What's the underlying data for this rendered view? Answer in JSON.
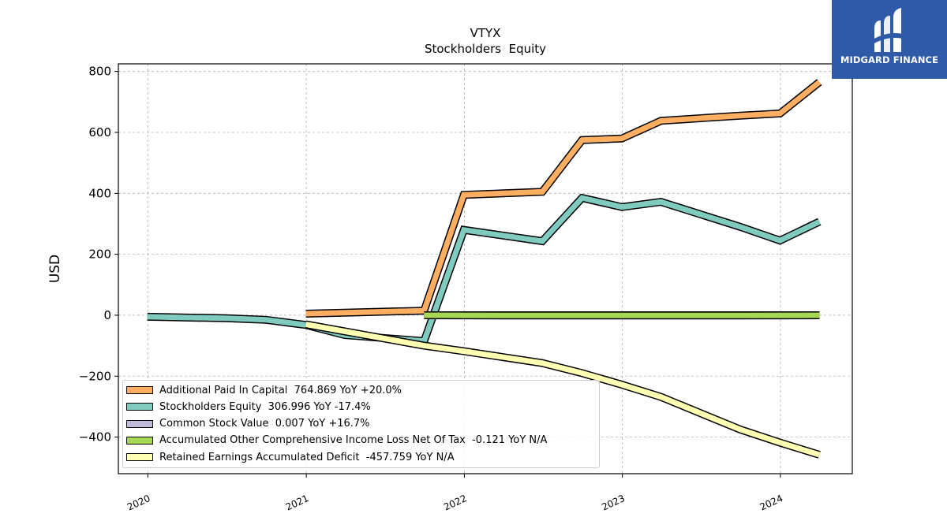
{
  "chart_data": {
    "type": "line",
    "title": "VTYX",
    "subtitle": "Stockholders  Equity",
    "ylabel": "USD",
    "xlabel": "",
    "x_ticks": [
      "2020",
      "2021",
      "2022",
      "2023",
      "2024"
    ],
    "y_ticks": [
      "−400",
      "−200",
      "0",
      "200",
      "400",
      "600",
      "800"
    ],
    "ylim": [
      -520,
      825
    ],
    "xlim": [
      "2019-10-25",
      "2024-06-15"
    ],
    "grid": true,
    "legend_position": "lower-left",
    "series": [
      {
        "name": "Additional Paid In Capital  764.869 YoY +20.0%",
        "color": "#fdae61",
        "points": [
          [
            "2020-12-31",
            5
          ],
          [
            "2021-09-30",
            15
          ],
          [
            "2021-12-31",
            395
          ],
          [
            "2022-06-30",
            405
          ],
          [
            "2022-09-30",
            575
          ],
          [
            "2022-12-31",
            580
          ],
          [
            "2023-03-31",
            638
          ],
          [
            "2023-09-30",
            655
          ],
          [
            "2023-12-31",
            662
          ],
          [
            "2024-03-31",
            765
          ]
        ]
      },
      {
        "name": "Stockholders Equity  306.996 YoY -17.4%",
        "color": "#80cbbf",
        "points": [
          [
            "2019-12-31",
            -5
          ],
          [
            "2020-06-30",
            -10
          ],
          [
            "2020-09-30",
            -15
          ],
          [
            "2020-12-31",
            -32
          ],
          [
            "2021-03-31",
            -65
          ],
          [
            "2021-09-30",
            -85
          ],
          [
            "2021-12-31",
            280
          ],
          [
            "2022-06-30",
            243
          ],
          [
            "2022-09-30",
            385
          ],
          [
            "2022-12-31",
            355
          ],
          [
            "2023-03-31",
            372
          ],
          [
            "2023-09-30",
            290
          ],
          [
            "2023-12-31",
            245
          ],
          [
            "2024-03-31",
            307
          ]
        ]
      },
      {
        "name": "Common Stock Value  0.007 YoY +16.7%",
        "color": "#bebada",
        "points": [
          [
            "2021-09-30",
            0.005
          ],
          [
            "2024-03-31",
            0.007
          ]
        ]
      },
      {
        "name": "Accumulated Other Comprehensive Income Loss Net Of Tax  -0.121 YoY N/A",
        "color": "#a6d854",
        "points": [
          [
            "2021-09-30",
            0
          ],
          [
            "2022-06-30",
            -1
          ],
          [
            "2022-12-31",
            -1
          ],
          [
            "2023-09-30",
            -1
          ],
          [
            "2024-03-31",
            -0.121
          ]
        ]
      },
      {
        "name": "Retained Earnings Accumulated Deficit  -457.759 YoY N/A",
        "color": "#ffffb3",
        "points": [
          [
            "2020-12-31",
            -30
          ],
          [
            "2021-09-30",
            -100
          ],
          [
            "2021-12-31",
            -118
          ],
          [
            "2022-06-30",
            -157
          ],
          [
            "2022-09-30",
            -190
          ],
          [
            "2022-12-31",
            -228
          ],
          [
            "2023-03-31",
            -268
          ],
          [
            "2023-09-30",
            -375
          ],
          [
            "2023-12-31",
            -418
          ],
          [
            "2024-03-31",
            -458
          ]
        ]
      }
    ]
  },
  "logo": {
    "text": "MIDGARD FINANCE",
    "color": "#2f5aa8"
  }
}
